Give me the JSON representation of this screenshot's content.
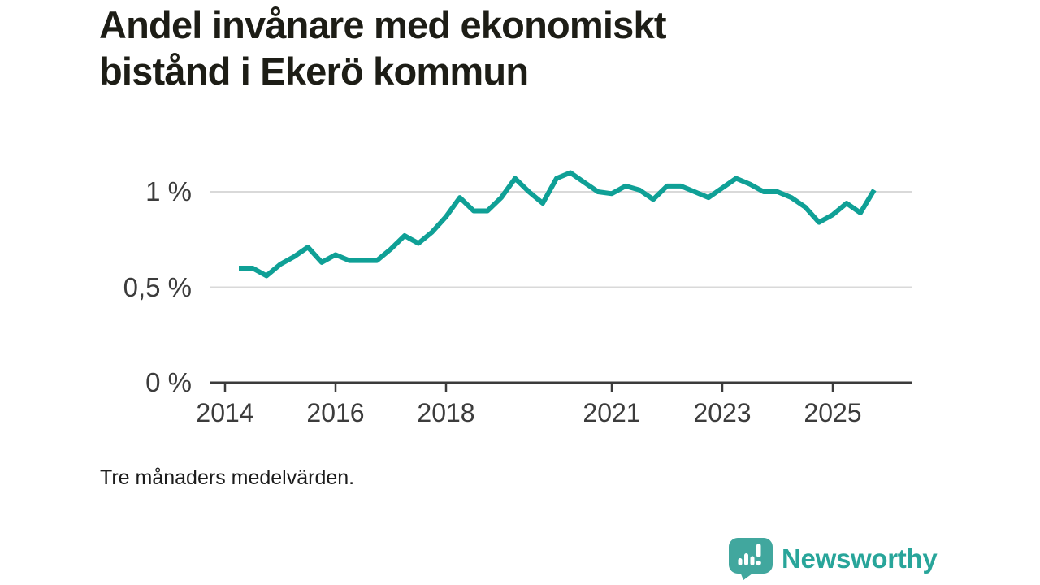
{
  "title": {
    "lines": [
      "Andel invånare med ekonomiskt",
      "bistånd i Ekerö kommun"
    ]
  },
  "footnote": {
    "text": "Tre månaders medelvärden."
  },
  "branding": {
    "name": "Newsworthy",
    "icon": "newsworthy-speech-bubble-bar-chart-logo",
    "logo_color": "#41a79e",
    "text_color": "#28a59a"
  },
  "colors": {
    "background": "#ffffff",
    "grid": "#d9d9d9",
    "axis": "#3b3b3b",
    "tick_text": "#3c3c3c",
    "title_text": "#1d1d16"
  },
  "chart_data": {
    "type": "line",
    "title": "Andel invånare med ekonomiskt bistånd i Ekerö kommun",
    "unit": "%",
    "note": "Tre månaders medelvärden.",
    "line_color": "#0fa096",
    "grid": "horizontal",
    "legend": "none",
    "xlim": [
      2013.72,
      2026.43
    ],
    "ylim": [
      0,
      1.15
    ],
    "x_ticks": [
      {
        "label": "2014",
        "year": 2014
      },
      {
        "label": "2016",
        "year": 2016
      },
      {
        "label": "2018",
        "year": 2018
      },
      {
        "label": "2021",
        "year": 2021
      },
      {
        "label": "2023",
        "year": 2023
      },
      {
        "label": "2025",
        "year": 2025
      }
    ],
    "y_ticks": [
      {
        "label": "1 %",
        "value": 1
      },
      {
        "label": "0,5 %",
        "value": 0.5
      },
      {
        "label": "0 %",
        "value": 0
      }
    ],
    "x": [
      2014.25,
      2014.5,
      2014.75,
      2015.0,
      2015.25,
      2015.5,
      2015.75,
      2016.0,
      2016.25,
      2016.5,
      2016.75,
      2017.0,
      2017.25,
      2017.5,
      2017.75,
      2018.0,
      2018.25,
      2018.5,
      2018.75,
      2019.0,
      2019.25,
      2019.5,
      2019.75,
      2020.0,
      2020.25,
      2020.5,
      2020.75,
      2021.0,
      2021.25,
      2021.5,
      2021.75,
      2022.0,
      2022.25,
      2022.5,
      2022.75,
      2023.0,
      2023.25,
      2023.5,
      2023.75,
      2024.0,
      2024.25,
      2024.5,
      2024.75,
      2025.0,
      2025.25,
      2025.5,
      2025.75
    ],
    "values": [
      0.6,
      0.6,
      0.56,
      0.62,
      0.66,
      0.71,
      0.63,
      0.67,
      0.64,
      0.64,
      0.64,
      0.7,
      0.77,
      0.73,
      0.79,
      0.87,
      0.97,
      0.9,
      0.9,
      0.97,
      1.07,
      1.0,
      0.94,
      1.07,
      1.1,
      1.05,
      1.0,
      0.99,
      1.03,
      1.01,
      0.96,
      1.03,
      1.03,
      1.0,
      0.97,
      1.02,
      1.07,
      1.04,
      1.0,
      1.0,
      0.97,
      0.92,
      0.84,
      0.88,
      0.94,
      0.89,
      1.01
    ]
  }
}
